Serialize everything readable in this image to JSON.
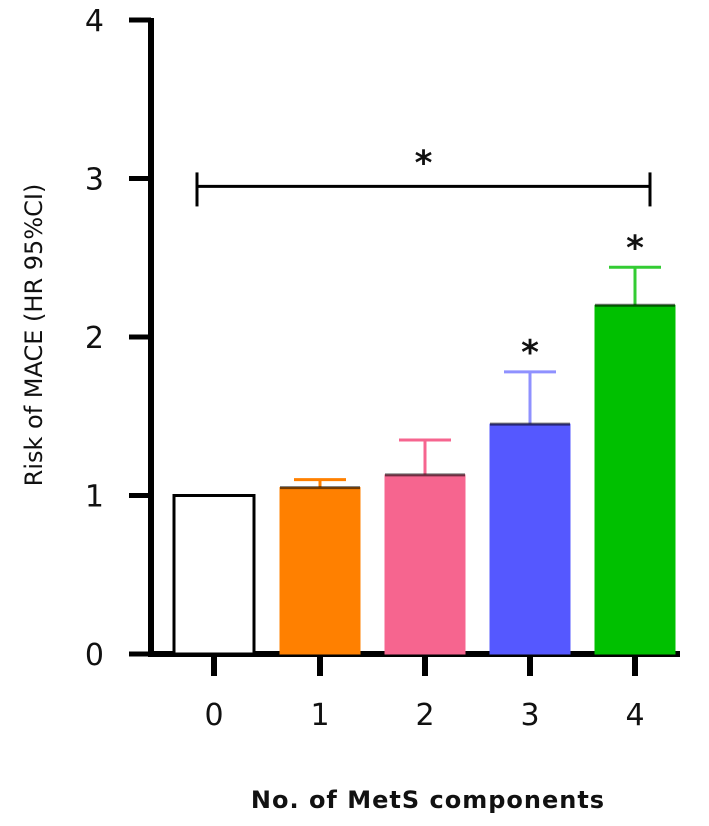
{
  "chart_data": {
    "type": "bar",
    "title": "",
    "xlabel": "No. of MetS components",
    "ylabel": "Risk of MACE (HR 95%CI)",
    "categories": [
      "0",
      "1",
      "2",
      "3",
      "4"
    ],
    "values": [
      1.0,
      1.05,
      1.13,
      1.45,
      2.2
    ],
    "error_upper": [
      1.0,
      1.1,
      1.35,
      1.78,
      2.44
    ],
    "bar_colors": [
      "#ffffff",
      "#ff8000",
      "#f6658f",
      "#5558ff",
      "#00c000"
    ],
    "errorbar_colors": [
      "#000000",
      "#ff8000",
      "#f6658f",
      "#8f91ff",
      "#33cc33"
    ],
    "significant": [
      false,
      false,
      false,
      true,
      true
    ],
    "significance_mark": "*",
    "bracket": {
      "from": "0",
      "to": "4",
      "y": 2.95,
      "label": "*"
    },
    "ylim": [
      0,
      4
    ],
    "yticks": [
      "0",
      "1",
      "2",
      "3",
      "4"
    ],
    "grid": false,
    "legend": "none"
  }
}
